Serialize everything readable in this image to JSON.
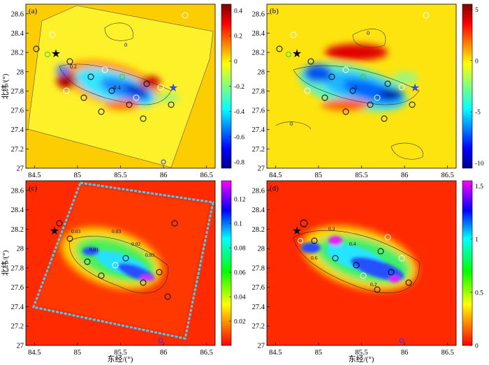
{
  "chart_data": [
    {
      "type": "heatmap",
      "panel_label": "(a)",
      "xlim": [
        84.4,
        86.6
      ],
      "ylim": [
        27.0,
        28.7
      ],
      "xticks": [
        "84.5",
        "85",
        "85.5",
        "86",
        "86.5"
      ],
      "yticks": [
        "27",
        "27.2",
        "27.4",
        "27.6",
        "27.8",
        "28",
        "28.2",
        "28.4",
        "28.6"
      ],
      "colorbar": {
        "range": [
          -0.85,
          0.45
        ],
        "ticks": [
          "0.4",
          "0.2",
          "0",
          "-0.2",
          "-0.4",
          "-0.6",
          "-0.8"
        ],
        "colormap": "jet"
      },
      "ylabel": "北纬/(°)",
      "contour_labels": [
        "0",
        "0.2",
        "-0.4"
      ],
      "markers": {
        "epicenter_star": [
          84.7,
          28.15
        ],
        "blue_star": [
          86.1,
          27.8
        ]
      }
    },
    {
      "type": "heatmap",
      "panel_label": "(b)",
      "xlim": [
        84.4,
        86.6
      ],
      "ylim": [
        27.0,
        28.7
      ],
      "xticks": [
        "84.5",
        "85",
        "85.5",
        "86",
        "86.5"
      ],
      "yticks": [
        "27",
        "27.2",
        "27.4",
        "27.6",
        "27.8",
        "28",
        "28.2",
        "28.4",
        "28.6"
      ],
      "colorbar": {
        "range": [
          -10.5,
          5.5
        ],
        "ticks": [
          "5",
          "0",
          "-5",
          "-10"
        ],
        "colormap": "jet"
      },
      "contour_labels": [
        "0",
        "-5",
        "0"
      ],
      "markers": {
        "epicenter_star": [
          84.7,
          28.15
        ],
        "blue_star": [
          86.1,
          27.8
        ]
      }
    },
    {
      "type": "heatmap",
      "panel_label": "(c)",
      "xlim": [
        84.4,
        86.6
      ],
      "ylim": [
        27.0,
        28.7
      ],
      "xticks": [
        "84.5",
        "85",
        "85.5",
        "86",
        "86.5"
      ],
      "yticks": [
        "27",
        "27.2",
        "27.4",
        "27.6",
        "27.8",
        "28",
        "28.2",
        "28.4",
        "28.6"
      ],
      "colorbar": {
        "range": [
          0.0,
          0.135
        ],
        "ticks": [
          "0.12",
          "0.1",
          "0.08",
          "0.06",
          "0.04",
          "0.02"
        ],
        "colormap": "jet_reversed"
      },
      "xlabel": "东经/(°)",
      "ylabel": "北纬/(°)",
      "contour_labels": [
        "0.03",
        "0.01",
        "0.03",
        "0.02",
        "0.03"
      ],
      "markers": {
        "epicenter_star": [
          84.7,
          28.15
        ]
      }
    },
    {
      "type": "heatmap",
      "panel_label": "(d)",
      "xlim": [
        84.4,
        86.6
      ],
      "ylim": [
        27.0,
        28.7
      ],
      "xticks": [
        "84.5",
        "85",
        "85.5",
        "86",
        "86.5"
      ],
      "yticks": [
        "27",
        "27.2",
        "27.4",
        "27.6",
        "27.8",
        "28",
        "28.2",
        "28.4",
        "28.6"
      ],
      "colorbar": {
        "range": [
          0.0,
          1.55
        ],
        "ticks": [
          "1.5",
          "1",
          "0.5",
          "0"
        ],
        "colormap": "jet_reversed"
      },
      "xlabel": "东经/(°)",
      "contour_labels": [
        "0.3",
        "0.6",
        "0.4",
        "0.2"
      ],
      "markers": {
        "epicenter_star": [
          84.7,
          28.15
        ]
      }
    }
  ]
}
